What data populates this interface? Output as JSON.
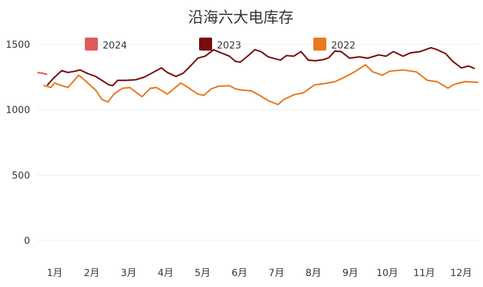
{
  "chart_data": {
    "type": "line",
    "title": "沿海六大电库存",
    "xlabel": "",
    "ylabel": "",
    "ylim": [
      0,
      1500
    ],
    "yticks": [
      0,
      500,
      1000,
      1500
    ],
    "xticks": [
      "1月",
      "2月",
      "3月",
      "4月",
      "5月",
      "6月",
      "7月",
      "8月",
      "9月",
      "10月",
      "11月",
      "12月"
    ],
    "grid": true,
    "legend_position": "top",
    "series": [
      {
        "name": "2024",
        "color": "#e0595c",
        "points": [
          [
            "01-02",
            1285
          ],
          [
            "01-06",
            1280
          ],
          [
            "01-10",
            1270
          ]
        ]
      },
      {
        "name": "2023",
        "color": "#7a0c0c",
        "points": [
          [
            "01-10",
            1187
          ],
          [
            "01-15",
            1240
          ],
          [
            "01-22",
            1300
          ],
          [
            "01-27",
            1285
          ],
          [
            "02-02",
            1295
          ],
          [
            "02-06",
            1305
          ],
          [
            "02-13",
            1275
          ],
          [
            "02-19",
            1255
          ],
          [
            "02-24",
            1225
          ],
          [
            "03-02",
            1190
          ],
          [
            "03-05",
            1185
          ],
          [
            "03-09",
            1225
          ],
          [
            "03-16",
            1225
          ],
          [
            "03-24",
            1230
          ],
          [
            "03-31",
            1250
          ],
          [
            "04-08",
            1290
          ],
          [
            "04-14",
            1320
          ],
          [
            "04-19",
            1285
          ],
          [
            "04-26",
            1255
          ],
          [
            "05-02",
            1280
          ],
          [
            "05-09",
            1345
          ],
          [
            "05-14",
            1395
          ],
          [
            "05-20",
            1410
          ],
          [
            "05-27",
            1460
          ],
          [
            "06-01",
            1440
          ],
          [
            "06-09",
            1410
          ],
          [
            "06-14",
            1370
          ],
          [
            "06-18",
            1365
          ],
          [
            "06-24",
            1410
          ],
          [
            "06-30",
            1460
          ],
          [
            "07-05",
            1445
          ],
          [
            "07-11",
            1405
          ],
          [
            "07-21",
            1380
          ],
          [
            "07-26",
            1415
          ],
          [
            "08-01",
            1410
          ],
          [
            "08-07",
            1445
          ],
          [
            "08-13",
            1380
          ],
          [
            "08-19",
            1375
          ],
          [
            "08-26",
            1385
          ],
          [
            "08-30",
            1400
          ],
          [
            "09-04",
            1450
          ],
          [
            "09-09",
            1445
          ],
          [
            "09-16",
            1395
          ],
          [
            "09-24",
            1405
          ],
          [
            "10-01",
            1395
          ],
          [
            "10-10",
            1420
          ],
          [
            "10-16",
            1410
          ],
          [
            "10-22",
            1445
          ],
          [
            "10-30",
            1410
          ],
          [
            "11-05",
            1435
          ],
          [
            "11-13",
            1445
          ],
          [
            "11-22",
            1475
          ],
          [
            "11-27",
            1460
          ],
          [
            "12-04",
            1430
          ],
          [
            "12-10",
            1370
          ],
          [
            "12-17",
            1320
          ],
          [
            "12-23",
            1335
          ],
          [
            "12-28",
            1315
          ]
        ]
      },
      {
        "name": "2022",
        "color": "#e8791f",
        "points": [
          [
            "01-07",
            1187
          ],
          [
            "01-13",
            1170
          ],
          [
            "01-16",
            1205
          ],
          [
            "01-22",
            1185
          ],
          [
            "01-27",
            1170
          ],
          [
            "02-05",
            1265
          ],
          [
            "02-10",
            1225
          ],
          [
            "02-19",
            1150
          ],
          [
            "02-24",
            1080
          ],
          [
            "03-01",
            1060
          ],
          [
            "03-06",
            1120
          ],
          [
            "03-13",
            1165
          ],
          [
            "03-19",
            1170
          ],
          [
            "03-24",
            1135
          ],
          [
            "03-29",
            1100
          ],
          [
            "04-05",
            1165
          ],
          [
            "04-10",
            1170
          ],
          [
            "04-19",
            1120
          ],
          [
            "04-30",
            1205
          ],
          [
            "05-06",
            1170
          ],
          [
            "05-14",
            1120
          ],
          [
            "05-19",
            1110
          ],
          [
            "05-25",
            1160
          ],
          [
            "05-31",
            1180
          ],
          [
            "06-09",
            1185
          ],
          [
            "06-14",
            1160
          ],
          [
            "06-20",
            1150
          ],
          [
            "06-27",
            1145
          ],
          [
            "07-04",
            1110
          ],
          [
            "07-11",
            1070
          ],
          [
            "07-19",
            1040
          ],
          [
            "07-24",
            1080
          ],
          [
            "08-01",
            1115
          ],
          [
            "08-09",
            1130
          ],
          [
            "08-18",
            1190
          ],
          [
            "08-26",
            1200
          ],
          [
            "09-04",
            1215
          ],
          [
            "09-12",
            1250
          ],
          [
            "09-21",
            1295
          ],
          [
            "09-29",
            1345
          ],
          [
            "10-05",
            1290
          ],
          [
            "10-13",
            1265
          ],
          [
            "10-19",
            1295
          ],
          [
            "10-30",
            1305
          ],
          [
            "11-10",
            1290
          ],
          [
            "11-19",
            1225
          ],
          [
            "11-27",
            1215
          ],
          [
            "12-06",
            1165
          ],
          [
            "12-11",
            1195
          ],
          [
            "12-20",
            1215
          ],
          [
            "12-31",
            1210
          ]
        ]
      }
    ]
  }
}
